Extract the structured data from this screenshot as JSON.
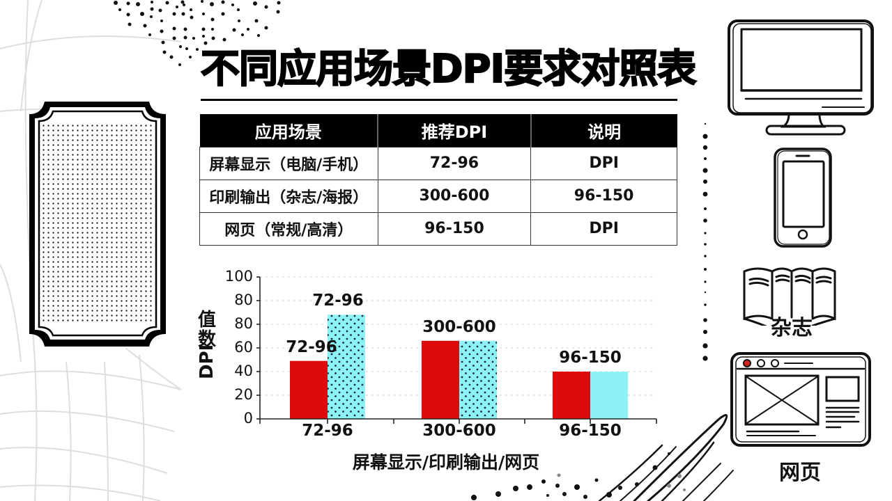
{
  "title": "不同应用场景DPI要求对照表",
  "table": {
    "headers": [
      "应用场景",
      "推荐DPI",
      "说明"
    ],
    "rows": [
      [
        "屏幕显示（电脑/手机）",
        "72-96",
        "DPI"
      ],
      [
        "印刷输出（杂志/海报）",
        "300-600",
        "96-150"
      ],
      [
        "网页（常规/高清）",
        "96-150",
        "DPI"
      ]
    ]
  },
  "chart_data": {
    "type": "bar",
    "title": "",
    "xlabel": "屏幕显示/印刷输出/网页",
    "ylabel": "DPI数值",
    "categories": [
      "72-96",
      "300-600",
      "96-150"
    ],
    "ytick_labels": [
      "100",
      "80",
      "80",
      "60",
      "40",
      "20",
      "0"
    ],
    "ylim": [
      0,
      120
    ],
    "grid": true,
    "legend": null,
    "series": [
      {
        "name": "red",
        "color": "#dd0b0b",
        "pattern": "solid",
        "values": [
          49,
          66,
          40
        ]
      },
      {
        "name": "cyan",
        "color": "#8cf2f5",
        "pattern": "dotted",
        "values": [
          88,
          66,
          40
        ]
      }
    ],
    "bar_labels": [
      {
        "text": "72-96",
        "series": 0,
        "category": 0
      },
      {
        "text": "72-96",
        "series": 1,
        "category": 0
      },
      {
        "text": "300-600",
        "series": "group",
        "category": 1
      },
      {
        "text": "96-150",
        "series": "group",
        "category": 2
      }
    ]
  },
  "side_icons": {
    "monitor": "monitor-icon",
    "phone": "phone-icon",
    "magazine": {
      "icon": "magazine-icon",
      "label": "杂志"
    },
    "webpage": {
      "icon": "webpage-icon",
      "label": "网页"
    }
  },
  "colors": {
    "red_bar": "#dd0b0b",
    "cyan_bar": "#8cf2f5",
    "webpage_dot": "#d42020",
    "header_bg": "#000000"
  }
}
